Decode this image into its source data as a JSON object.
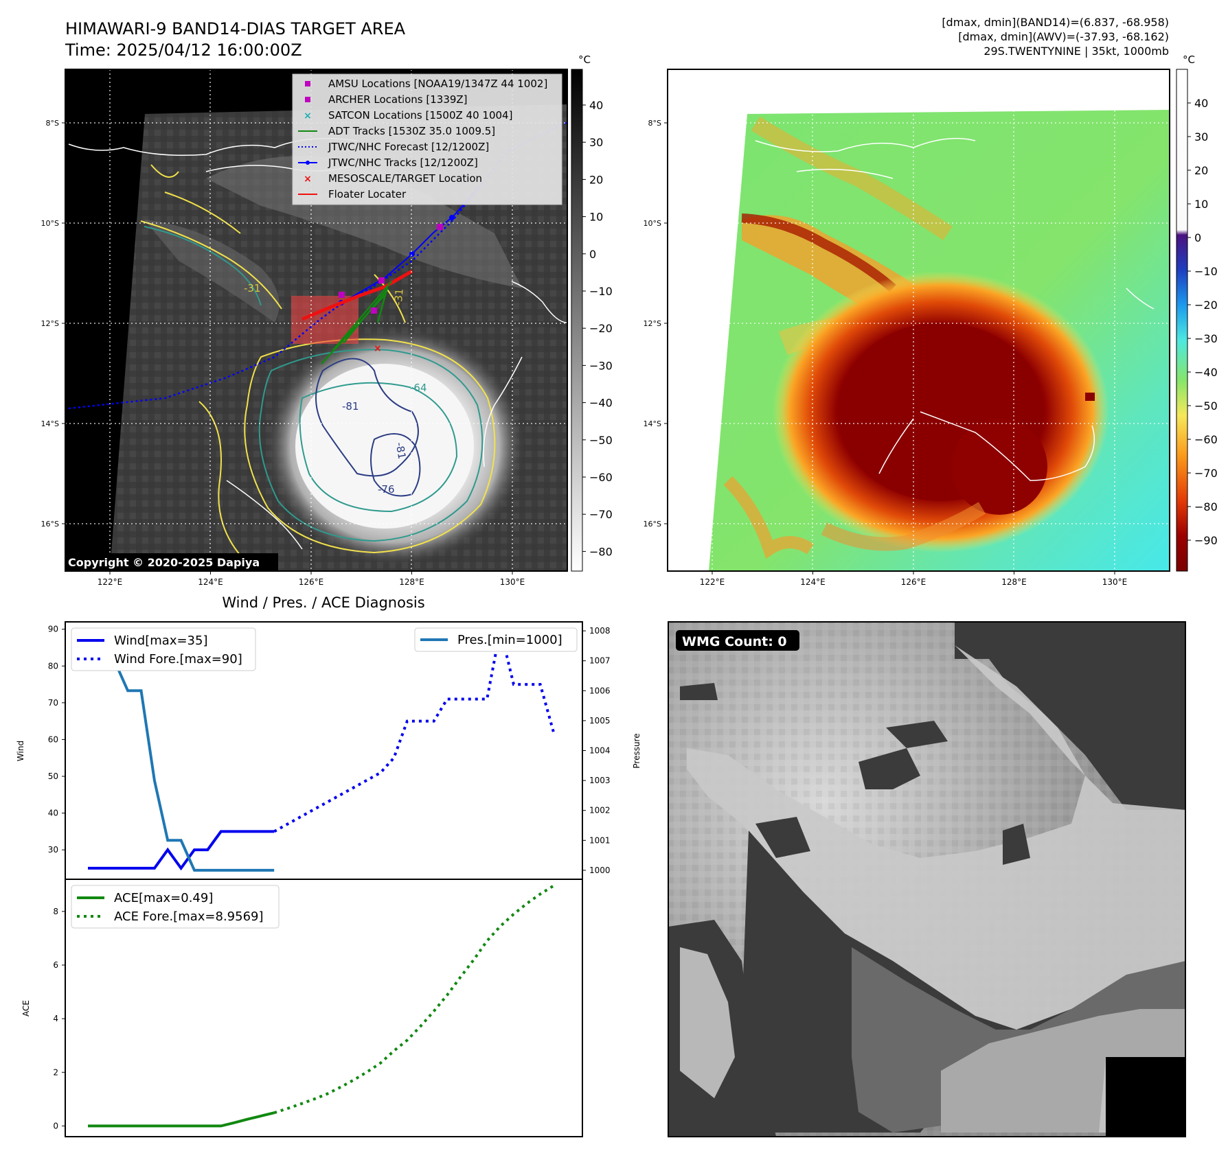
{
  "header": {
    "title_line1": "HIMAWARI-9 BAND14-DIAS TARGET AREA",
    "title_line2": "Time: 2025/04/12 16:00:00Z",
    "right_line1": "[dmax, dmin](BAND14)=(6.837, -68.958)",
    "right_line2": "[dmax, dmin](AWV)=(-37.93, -68.162)",
    "right_line3": "29S.TWENTYNINE | 35kt, 1000mb"
  },
  "map": {
    "lon_ticks": [
      "122°E",
      "124°E",
      "126°E",
      "128°E",
      "130°E"
    ],
    "lat_ticks": [
      "8°S",
      "10°S",
      "12°S",
      "14°S",
      "16°S"
    ],
    "copyright": "Copyright © 2020-2025 Dapiya",
    "contour_labels": [
      "-31",
      "-31",
      "-64",
      "-81",
      "-81",
      "-76"
    ],
    "colors": {
      "coast": "#ffffff",
      "yellow": "#f2e24b",
      "teal": "#2f9a8e",
      "navy": "#2b3c84",
      "track": "#0000ff",
      "adt": "#118811",
      "red": "#ee1111"
    },
    "legend": [
      {
        "label": "AMSU Locations [NOAA19/1347Z 44 1002]",
        "marker": "square",
        "color": "#c000c0"
      },
      {
        "label": "ARCHER Locations [1339Z]",
        "marker": "square",
        "color": "#c000c0"
      },
      {
        "label": "SATCON Locations [1500Z 40 1004]",
        "marker": "x",
        "color": "#20b0b0"
      },
      {
        "label": "ADT Tracks [1530Z 35.0 1009.5]",
        "marker": "line",
        "color": "#118811"
      },
      {
        "label": "JTWC/NHC Forecast [12/1200Z]",
        "marker": "dotted",
        "color": "#0000ff"
      },
      {
        "label": "JTWC/NHC Tracks [12/1200Z]",
        "marker": "line-dot",
        "color": "#0000ff"
      },
      {
        "label": "MESOSCALE/TARGET Location",
        "marker": "x",
        "color": "#ee1111"
      },
      {
        "label": "Floater Locater",
        "marker": "line",
        "color": "#ee1111"
      }
    ]
  },
  "colorbar_left": {
    "unit": "°C",
    "ticks": [
      "40",
      "30",
      "20",
      "10",
      "0",
      "−10",
      "−20",
      "−30",
      "−40",
      "−50",
      "−60",
      "−70",
      "−80"
    ]
  },
  "colorbar_right": {
    "unit": "°C",
    "ticks": [
      "40",
      "30",
      "20",
      "10",
      "0",
      "−10",
      "−20",
      "−30",
      "−40",
      "−50",
      "−60",
      "−70",
      "−80",
      "−90"
    ]
  },
  "wmg": {
    "label": "WMG Count: 0"
  },
  "chart_data": [
    {
      "type": "line",
      "title": "Wind / Pres. / ACE Diagnosis",
      "ylabel": "Wind",
      "ylim": [
        22,
        92
      ],
      "yticks": [
        "30",
        "40",
        "50",
        "60",
        "70",
        "80",
        "90"
      ],
      "y2label": "Pressure",
      "y2lim": [
        999.7,
        1008.3
      ],
      "y2ticks": [
        "1000",
        "1001",
        "1002",
        "1003",
        "1004",
        "1005",
        "1006",
        "1007",
        "1008"
      ],
      "x": [
        0,
        1,
        2,
        3,
        4,
        5,
        6,
        7,
        8,
        9,
        10,
        11,
        12,
        13,
        14,
        15,
        16,
        17,
        18,
        19,
        20,
        21,
        22,
        23,
        24,
        25,
        26,
        27,
        28,
        29,
        30,
        31,
        32,
        33,
        34,
        35
      ],
      "series": [
        {
          "name": "Wind[max=35]",
          "style": "solid",
          "color": "#0000ee",
          "x": [
            0,
            1,
            2,
            3,
            4,
            5,
            6,
            7,
            8,
            9,
            10,
            11,
            12,
            13,
            14
          ],
          "values": [
            25,
            25,
            25,
            25,
            25,
            25,
            30,
            25,
            30,
            30,
            35,
            35,
            35,
            35,
            35
          ]
        },
        {
          "name": "Wind Fore.[max=90]",
          "style": "dotted",
          "color": "#0000ee",
          "x": [
            14,
            15,
            16,
            17,
            18,
            19,
            20,
            21,
            22,
            23,
            24,
            25,
            26,
            27,
            28,
            29,
            30,
            31,
            32,
            33,
            34,
            35
          ],
          "values": [
            35,
            37,
            39,
            41,
            43,
            45,
            47,
            49,
            51,
            55,
            65,
            65,
            65,
            71,
            71,
            71,
            71,
            90,
            75,
            75,
            75,
            62
          ]
        },
        {
          "name": "Pres.[min=1000]",
          "style": "solid",
          "color": "#1f77b4",
          "axis": "right",
          "x": [
            0,
            1,
            2,
            3,
            4,
            5,
            6,
            7,
            8,
            9,
            10,
            11,
            12,
            13,
            14
          ],
          "values": [
            1008,
            1007,
            1007,
            1006,
            1006,
            1003,
            1001,
            1001,
            1000,
            1000,
            1000,
            1000,
            1000,
            1000,
            1000
          ]
        }
      ]
    },
    {
      "type": "line",
      "ylabel": "ACE",
      "ylim": [
        -0.4,
        9.2
      ],
      "yticks": [
        "0",
        "2",
        "4",
        "6",
        "8"
      ],
      "x": [
        0,
        1,
        2,
        3,
        4,
        5,
        6,
        7,
        8,
        9,
        10,
        11,
        12,
        13,
        14,
        15,
        16,
        17,
        18,
        19,
        20,
        21,
        22,
        23,
        24,
        25,
        26,
        27,
        28,
        29,
        30,
        31,
        32,
        33,
        34,
        35
      ],
      "series": [
        {
          "name": "ACE[max=0.49]",
          "style": "solid",
          "color": "#118811",
          "x": [
            0,
            1,
            2,
            3,
            4,
            5,
            6,
            7,
            8,
            9,
            10,
            11,
            12,
            13,
            14
          ],
          "values": [
            0,
            0,
            0,
            0,
            0,
            0,
            0,
            0,
            0,
            0,
            0,
            0.12,
            0.25,
            0.37,
            0.49
          ]
        },
        {
          "name": "ACE Fore.[max=8.9569]",
          "style": "dotted",
          "color": "#118811",
          "x": [
            14,
            15,
            16,
            17,
            18,
            19,
            20,
            21,
            22,
            23,
            24,
            25,
            26,
            27,
            28,
            29,
            30,
            31,
            32,
            33,
            34,
            35
          ],
          "values": [
            0.49,
            0.65,
            0.82,
            1.0,
            1.2,
            1.45,
            1.72,
            2.02,
            2.35,
            2.8,
            3.2,
            3.72,
            4.28,
            4.88,
            5.55,
            6.2,
            6.9,
            7.45,
            7.9,
            8.3,
            8.65,
            8.9569
          ]
        }
      ]
    }
  ]
}
